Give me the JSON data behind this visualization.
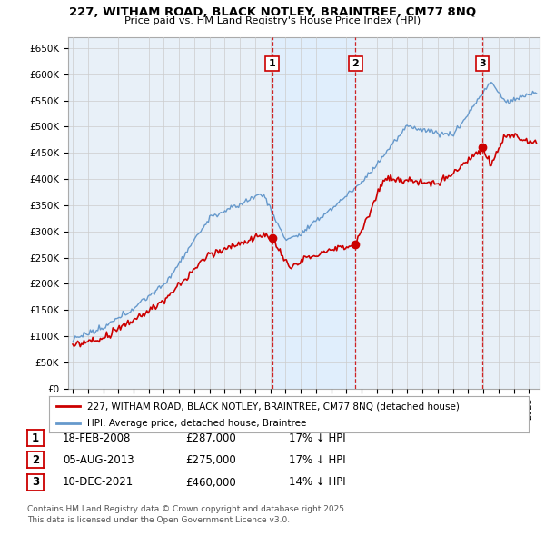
{
  "title_line1": "227, WITHAM ROAD, BLACK NOTLEY, BRAINTREE, CM77 8NQ",
  "title_line2": "Price paid vs. HM Land Registry's House Price Index (HPI)",
  "ylim": [
    0,
    670000
  ],
  "yticks": [
    0,
    50000,
    100000,
    150000,
    200000,
    250000,
    300000,
    350000,
    400000,
    450000,
    500000,
    550000,
    600000,
    650000
  ],
  "ytick_labels": [
    "£0",
    "£50K",
    "£100K",
    "£150K",
    "£200K",
    "£250K",
    "£300K",
    "£350K",
    "£400K",
    "£450K",
    "£500K",
    "£550K",
    "£600K",
    "£650K"
  ],
  "xlim_start": 1994.7,
  "xlim_end": 2025.7,
  "sale_dates": [
    2008.12,
    2013.6,
    2021.94
  ],
  "sale_prices": [
    287000,
    275000,
    460000
  ],
  "sale_labels": [
    "1",
    "2",
    "3"
  ],
  "legend_entries": [
    "227, WITHAM ROAD, BLACK NOTLEY, BRAINTREE, CM77 8NQ (detached house)",
    "HPI: Average price, detached house, Braintree"
  ],
  "table_rows": [
    [
      "1",
      "18-FEB-2008",
      "£287,000",
      "17% ↓ HPI"
    ],
    [
      "2",
      "05-AUG-2013",
      "£275,000",
      "17% ↓ HPI"
    ],
    [
      "3",
      "10-DEC-2021",
      "£460,000",
      "14% ↓ HPI"
    ]
  ],
  "footnote": "Contains HM Land Registry data © Crown copyright and database right 2025.\nThis data is licensed under the Open Government Licence v3.0.",
  "red_color": "#cc0000",
  "blue_color": "#6699cc",
  "blue_fill_color": "#ddeeff",
  "bg_color": "#e8f0f8",
  "grid_color": "#cccccc"
}
